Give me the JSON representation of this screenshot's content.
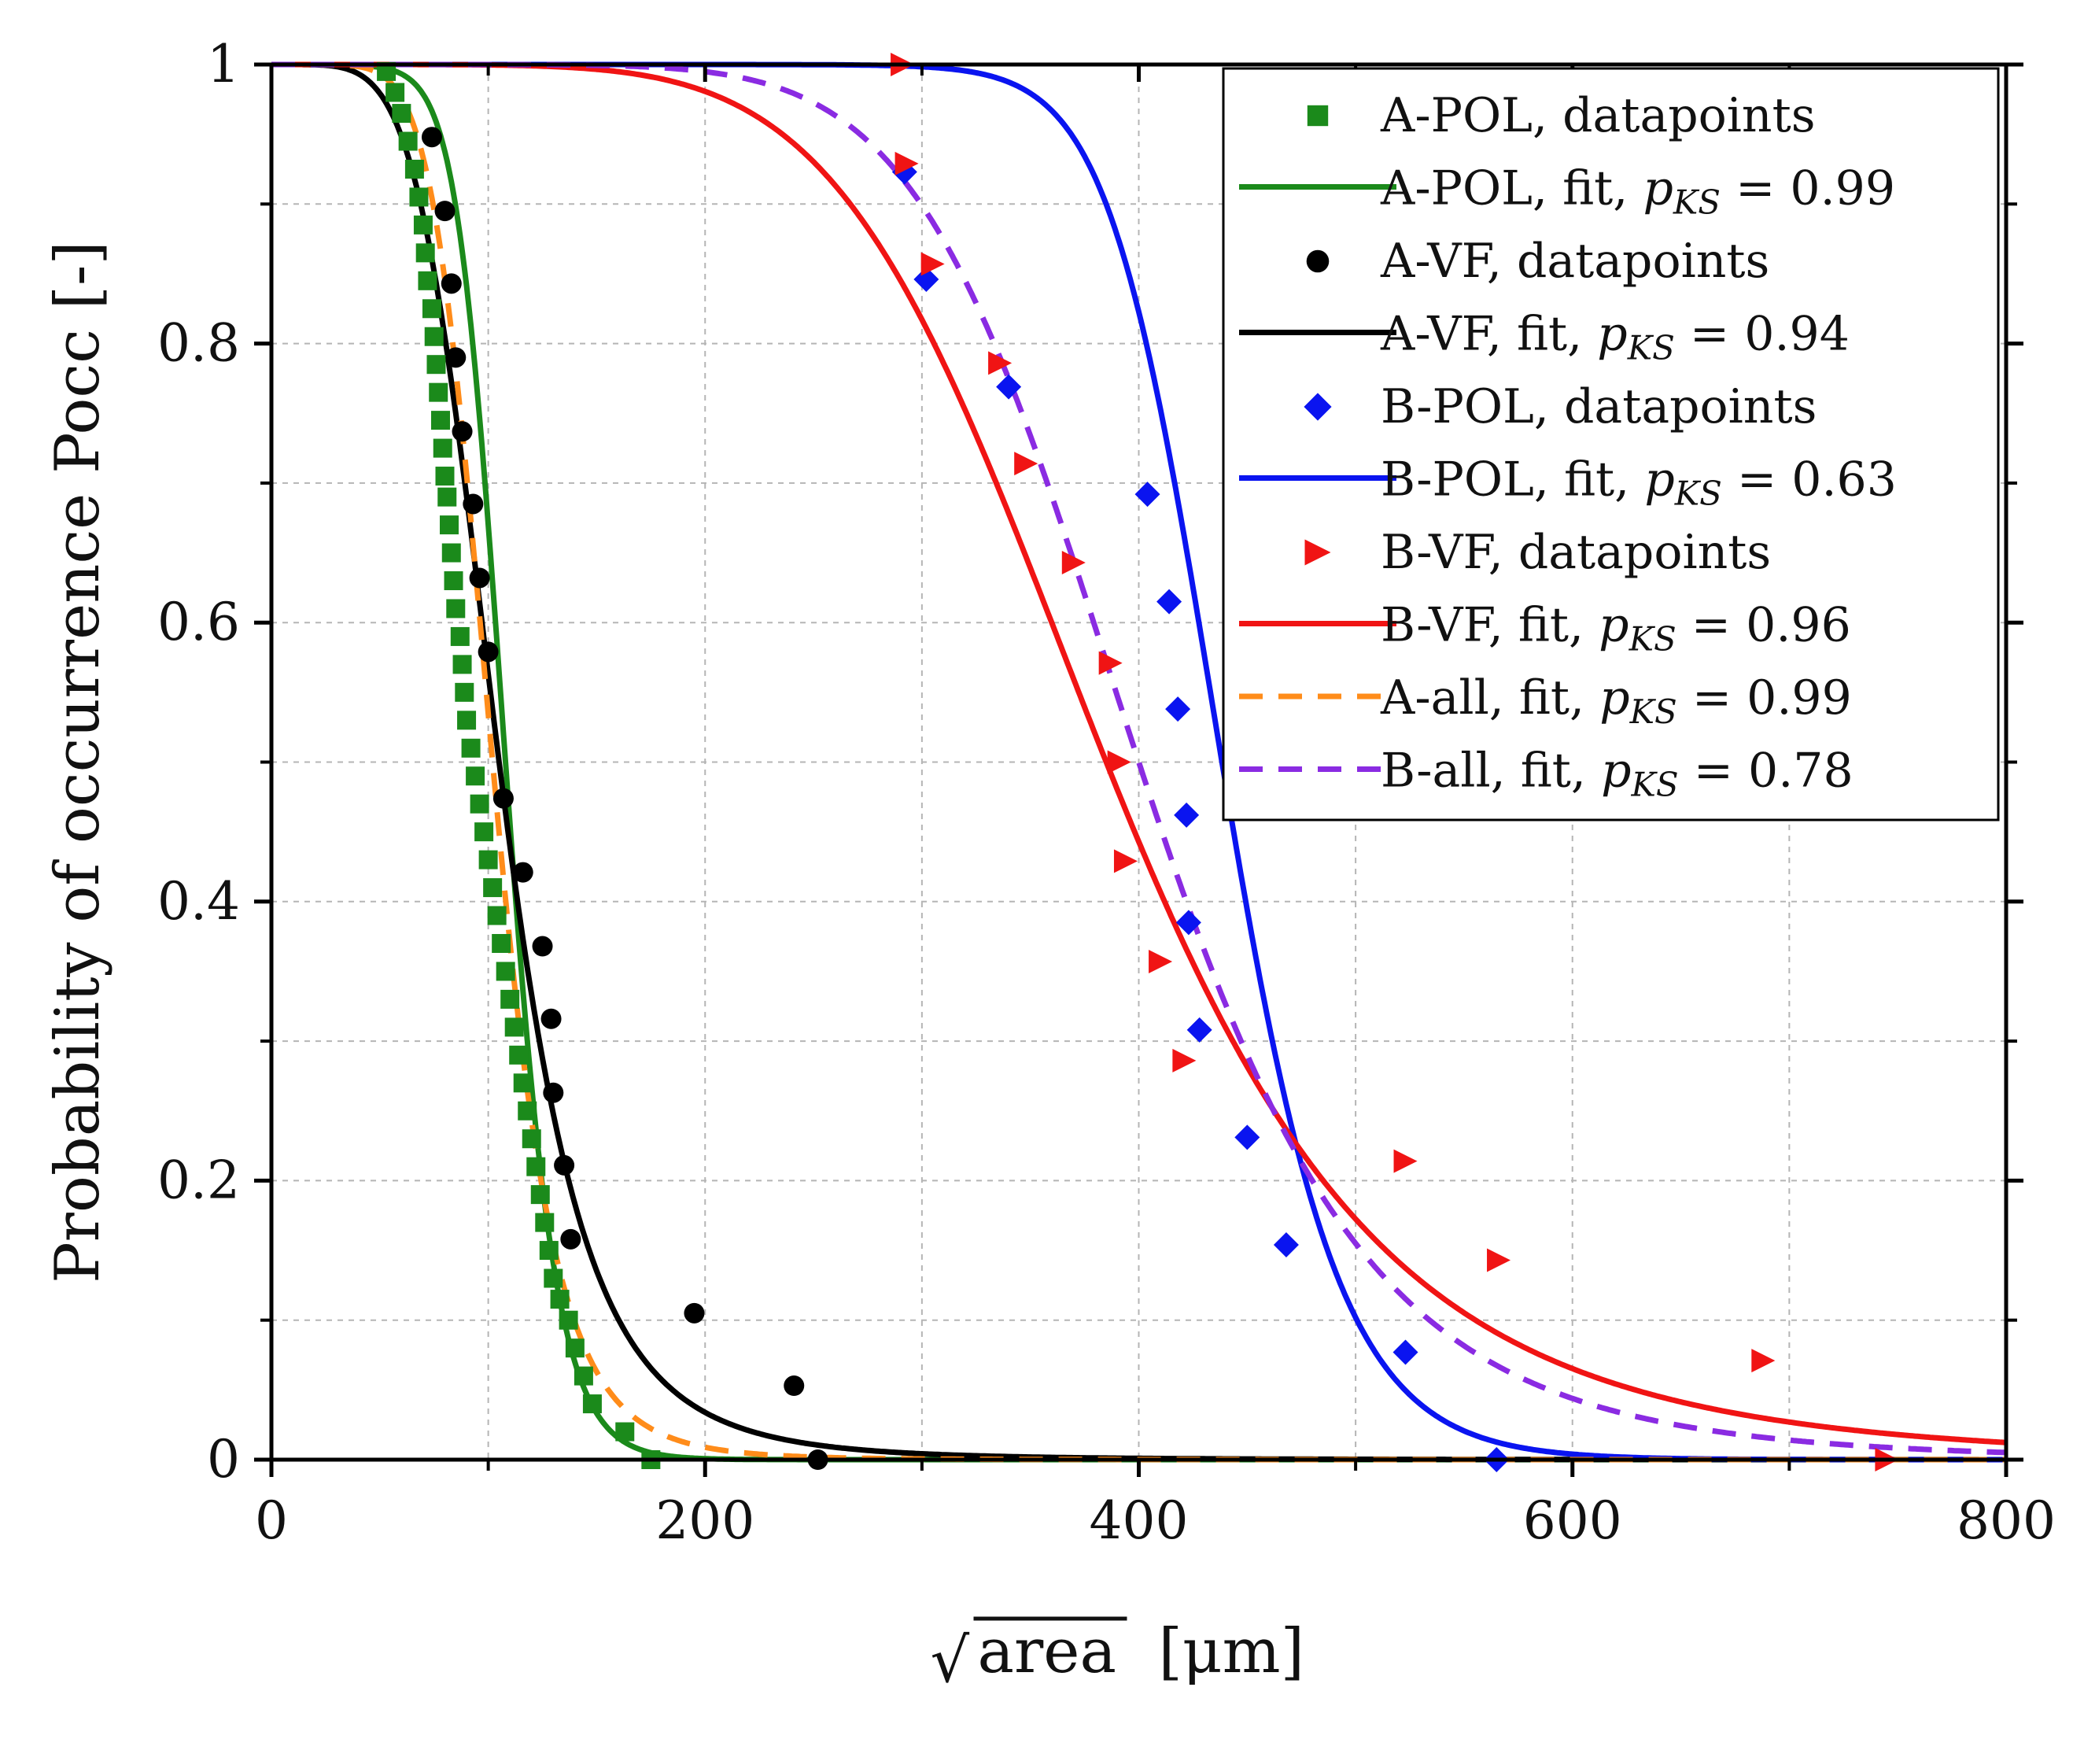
{
  "chart_data": {
    "type": "scatter",
    "title": "",
    "xlabel": "√area [μm]",
    "xlabel_parts": {
      "radical": "√",
      "word": "area",
      "unit": "[μm]"
    },
    "ylabel": "Probability of occurrence Pocc [-]",
    "xlim": [
      0,
      800
    ],
    "ylim": [
      0,
      1
    ],
    "xticks": [
      0,
      200,
      400,
      600,
      800
    ],
    "xtick_labels": [
      "0",
      "200",
      "400",
      "600",
      "800"
    ],
    "yticks": [
      0,
      0.2,
      0.4,
      0.6,
      0.8,
      1
    ],
    "ytick_labels": [
      "0",
      "0.2",
      "0.4",
      "0.6",
      "0.8",
      "1"
    ],
    "grid": true,
    "legend_position": "top-right",
    "legend": [
      {
        "label": "A-POL, datapoints",
        "kind": "marker",
        "marker": "square",
        "color": "#1b8a1b"
      },
      {
        "label": "A-POL, fit, ",
        "pks": "0.99",
        "kind": "line",
        "dash": "solid",
        "color": "#1b8a1b"
      },
      {
        "label": "A-VF, datapoints",
        "kind": "marker",
        "marker": "circle",
        "color": "#000000"
      },
      {
        "label": "A-VF, fit, ",
        "pks": "0.94",
        "kind": "line",
        "dash": "solid",
        "color": "#000000"
      },
      {
        "label": "B-POL, datapoints",
        "kind": "marker",
        "marker": "diamond",
        "color": "#0a14f0"
      },
      {
        "label": "B-POL, fit, ",
        "pks": "0.63",
        "kind": "line",
        "dash": "solid",
        "color": "#0a14f0"
      },
      {
        "label": "B-VF, datapoints",
        "kind": "marker",
        "marker": "triangle-right",
        "color": "#f01414"
      },
      {
        "label": "B-VF, fit, ",
        "pks": "0.96",
        "kind": "line",
        "dash": "solid",
        "color": "#f01414"
      },
      {
        "label": "A-all, fit, ",
        "pks": "0.99",
        "kind": "line",
        "dash": "dashed",
        "color": "#ff8c1a"
      },
      {
        "label": "B-all, fit, ",
        "pks": "0.78",
        "kind": "line",
        "dash": "dashed",
        "color": "#8a2be2"
      }
    ],
    "pks_symbol": {
      "p": "p",
      "sub": "KS",
      "eq": " = "
    },
    "series": [
      {
        "name": "A-POL, datapoints",
        "kind": "scatter",
        "marker": "square",
        "color": "#1b8a1b",
        "points": [
          [
            53,
            0.995
          ],
          [
            57,
            0.98
          ],
          [
            60,
            0.965
          ],
          [
            63,
            0.945
          ],
          [
            66,
            0.925
          ],
          [
            68,
            0.905
          ],
          [
            70,
            0.885
          ],
          [
            71,
            0.865
          ],
          [
            72,
            0.845
          ],
          [
            74,
            0.825
          ],
          [
            75,
            0.805
          ],
          [
            76,
            0.785
          ],
          [
            77,
            0.765
          ],
          [
            78,
            0.745
          ],
          [
            79,
            0.725
          ],
          [
            80,
            0.705
          ],
          [
            81,
            0.69
          ],
          [
            82,
            0.67
          ],
          [
            83,
            0.65
          ],
          [
            84,
            0.63
          ],
          [
            85,
            0.61
          ],
          [
            87,
            0.59
          ],
          [
            88,
            0.57
          ],
          [
            89,
            0.55
          ],
          [
            90,
            0.53
          ],
          [
            92,
            0.51
          ],
          [
            94,
            0.49
          ],
          [
            96,
            0.47
          ],
          [
            98,
            0.45
          ],
          [
            100,
            0.43
          ],
          [
            102,
            0.41
          ],
          [
            104,
            0.39
          ],
          [
            106,
            0.37
          ],
          [
            108,
            0.35
          ],
          [
            110,
            0.33
          ],
          [
            112,
            0.31
          ],
          [
            114,
            0.29
          ],
          [
            116,
            0.27
          ],
          [
            118,
            0.25
          ],
          [
            120,
            0.23
          ],
          [
            122,
            0.21
          ],
          [
            124,
            0.19
          ],
          [
            126,
            0.17
          ],
          [
            128,
            0.15
          ],
          [
            130,
            0.13
          ],
          [
            133,
            0.115
          ],
          [
            137,
            0.1
          ],
          [
            140,
            0.08
          ],
          [
            144,
            0.06
          ],
          [
            148,
            0.04
          ],
          [
            163,
            0.02
          ],
          [
            175,
            0.0
          ]
        ]
      },
      {
        "name": "A-VF, datapoints",
        "kind": "scatter",
        "marker": "circle",
        "color": "#000000",
        "points": [
          [
            74,
            0.948
          ],
          [
            80,
            0.895
          ],
          [
            83,
            0.843
          ],
          [
            85,
            0.79
          ],
          [
            88,
            0.737
          ],
          [
            93,
            0.685
          ],
          [
            96,
            0.632
          ],
          [
            100,
            0.579
          ],
          [
            107,
            0.474
          ],
          [
            116,
            0.421
          ],
          [
            125,
            0.368
          ],
          [
            129,
            0.316
          ],
          [
            130,
            0.263
          ],
          [
            135,
            0.211
          ],
          [
            138,
            0.158
          ],
          [
            195,
            0.105
          ],
          [
            241,
            0.053
          ],
          [
            252,
            0.0
          ]
        ]
      },
      {
        "name": "B-POL, datapoints",
        "kind": "scatter",
        "marker": "diamond",
        "color": "#0a14f0",
        "points": [
          [
            292,
            0.923
          ],
          [
            302,
            0.846
          ],
          [
            340,
            0.769
          ],
          [
            404,
            0.692
          ],
          [
            414,
            0.615
          ],
          [
            418,
            0.538
          ],
          [
            422,
            0.462
          ],
          [
            423,
            0.385
          ],
          [
            428,
            0.308
          ],
          [
            450,
            0.231
          ],
          [
            468,
            0.154
          ],
          [
            523,
            0.077
          ],
          [
            565,
            0.0
          ]
        ]
      },
      {
        "name": "B-VF, datapoints",
        "kind": "scatter",
        "marker": "triangle-right",
        "color": "#f01414",
        "points": [
          [
            291,
            1.0
          ],
          [
            293,
            0.929
          ],
          [
            305,
            0.857
          ],
          [
            336,
            0.786
          ],
          [
            348,
            0.714
          ],
          [
            370,
            0.643
          ],
          [
            387,
            0.571
          ],
          [
            391,
            0.5
          ],
          [
            394,
            0.429
          ],
          [
            410,
            0.357
          ],
          [
            421,
            0.286
          ],
          [
            523,
            0.214
          ],
          [
            566,
            0.143
          ],
          [
            688,
            0.071
          ],
          [
            745,
            0.0
          ]
        ]
      },
      {
        "name": "A-POL, fit",
        "kind": "line",
        "dash": "solid",
        "color": "#1b8a1b",
        "model": "logistic",
        "mu": 100,
        "s": 13,
        "power": 1.6
      },
      {
        "name": "A-VF, fit",
        "kind": "line",
        "dash": "solid",
        "color": "#000000",
        "model": "loglogistic",
        "alpha": 105,
        "beta": 5.2
      },
      {
        "name": "B-POL, fit",
        "kind": "line",
        "dash": "solid",
        "color": "#0a14f0",
        "model": "logistic",
        "mu": 420,
        "s": 30,
        "power": 1.6
      },
      {
        "name": "B-VF, fit",
        "kind": "line",
        "dash": "solid",
        "color": "#f01414",
        "model": "loglogistic",
        "alpha": 385,
        "beta": 6.0
      },
      {
        "name": "A-all, fit",
        "kind": "line",
        "dash": "dashed",
        "color": "#ff8c1a",
        "model": "loglogistic",
        "alpha": 102,
        "beta": 7.0
      },
      {
        "name": "B-all, fit",
        "kind": "line",
        "dash": "dashed",
        "color": "#8a2be2",
        "model": "loglogistic",
        "alpha": 400,
        "beta": 7.6
      }
    ]
  }
}
